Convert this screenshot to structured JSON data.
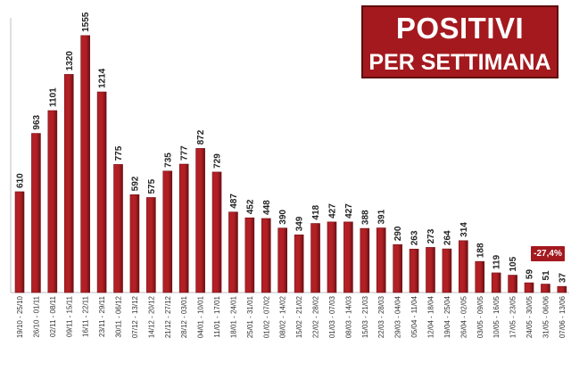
{
  "title": {
    "line1": "POSITIVI",
    "line2": "PER SETTIMANA"
  },
  "colors": {
    "bar": "#b22025",
    "bar_dark": "#6e1014",
    "title_bg": "#a3191e",
    "badge_bg": "#a3191e",
    "axis": "#bfbfbf"
  },
  "badge": {
    "text": "-27,4%"
  },
  "chart_data": {
    "type": "bar",
    "title": "POSITIVI PER SETTIMANA",
    "categories": [
      "19/10 - 25/10",
      "26/10 - 01/11",
      "02/11 - 08/11",
      "09/11 - 15/11",
      "16/11 - 22/11",
      "23/11 - 29/11",
      "30/11 - 06/12",
      "07/12 - 13/12",
      "14/12 - 20/12",
      "21/12 - 27/12",
      "28/12 - 03/01",
      "04/01 - 10/01",
      "11/01 - 17/01",
      "18/01 - 24/01",
      "25/01 - 31/01",
      "01/02 - 07/02",
      "08/02 - 14/02",
      "15/02 - 21/02",
      "22/02 - 28/02",
      "01/03 - 07/03",
      "08/03 - 14/03",
      "15/03 - 21/03",
      "22/03 - 28/03",
      "29/03 - 04/04",
      "05/04 - 11/04",
      "12/04 - 18/04",
      "19/04 - 25/04",
      "26/04 - 02/05",
      "03/05 - 09/05",
      "10/05 - 16/05",
      "17/05 - 23/05",
      "24/05 - 30/05",
      "31/05 - 06/06",
      "07/06 - 13/06"
    ],
    "values": [
      610,
      963,
      1101,
      1320,
      1555,
      1214,
      775,
      592,
      575,
      735,
      777,
      872,
      729,
      487,
      452,
      448,
      390,
      349,
      418,
      427,
      427,
      388,
      391,
      290,
      263,
      273,
      264,
      314,
      188,
      119,
      105,
      59,
      51,
      37
    ],
    "ylim": [
      0,
      1700
    ],
    "grid": false,
    "legend": "none",
    "annotations": [
      {
        "text": "-27,4%",
        "category": "07/06 - 13/06"
      }
    ]
  }
}
